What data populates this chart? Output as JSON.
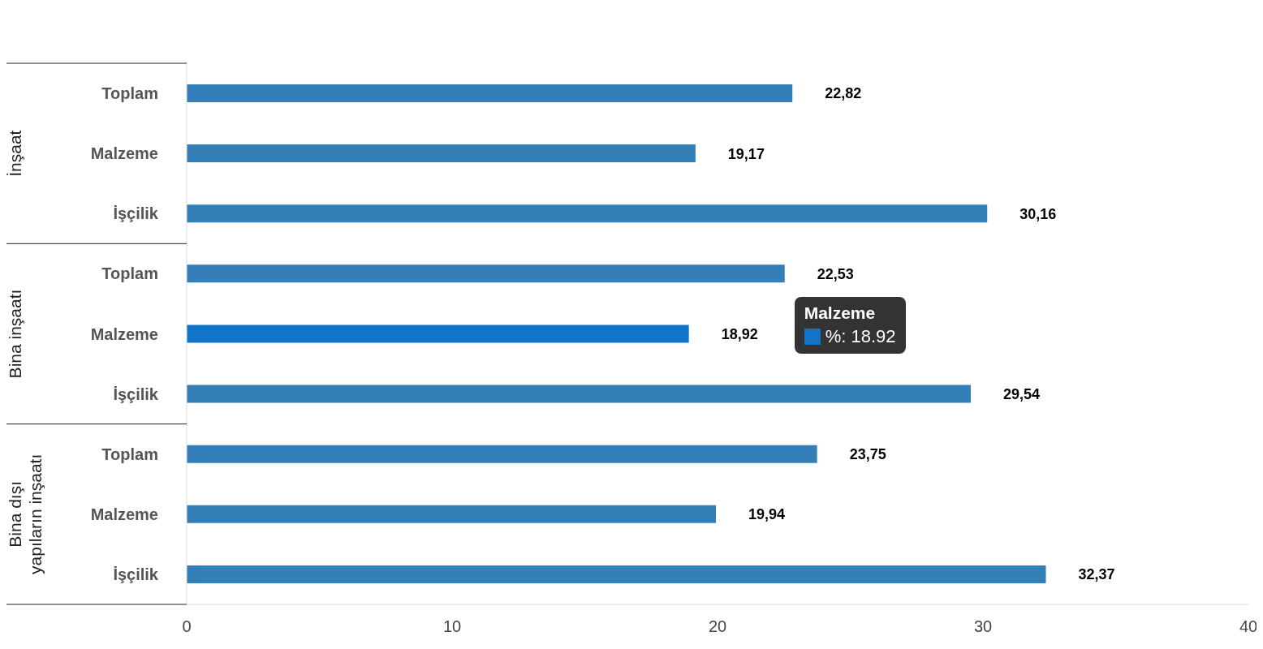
{
  "chart_data": {
    "type": "bar",
    "orientation": "horizontal",
    "categories": [
      "Toplam",
      "Malzeme",
      "İşçilik",
      "Toplam",
      "Malzeme",
      "İşçilik",
      "Toplam",
      "Malzeme",
      "İşçilik"
    ],
    "values": [
      22.82,
      19.17,
      30.16,
      22.53,
      18.92,
      29.54,
      23.75,
      19.94,
      32.37
    ],
    "colors": [
      "#357fb8",
      "#357fb8",
      "#357fb8",
      "#357fb8",
      "#1174c6",
      "#357fb8",
      "#357fb8",
      "#357fb8",
      "#357fb8"
    ],
    "value_labels": [
      "22,82",
      "19,17",
      "30,16",
      "22,53",
      "18,92",
      "29,54",
      "23,75",
      "19,94",
      "32,37"
    ],
    "xlim": [
      0,
      40
    ],
    "xticks": [
      0,
      10,
      20,
      30,
      40
    ],
    "annotations": [
      "İnşaat",
      "Bina inşaatı",
      "Bina dışı yapıların inşaatı",
      "Malzeme",
      "%: 18.92"
    ]
  }
}
